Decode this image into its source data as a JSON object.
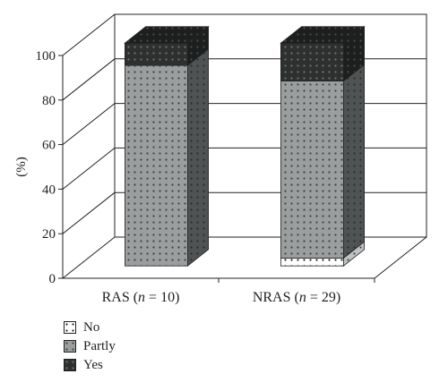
{
  "chart_data": {
    "type": "bar",
    "stacked": true,
    "style": "3d",
    "ylabel": "(%)",
    "ylim": [
      0,
      100
    ],
    "yticks": [
      0,
      20,
      40,
      60,
      80,
      100
    ],
    "categories": [
      {
        "name": "RAS",
        "n": "10"
      },
      {
        "name": "NRAS",
        "n": "29"
      }
    ],
    "series": [
      {
        "name": "No",
        "values": [
          0,
          3.5
        ],
        "color": "#ffffff"
      },
      {
        "name": "Partly",
        "values": [
          90,
          79.5
        ],
        "color": "#9a9e9e"
      },
      {
        "name": "Yes",
        "values": [
          10,
          17
        ],
        "color": "#2e3030"
      }
    ],
    "grid": true,
    "legend_position": "bottom-left"
  }
}
